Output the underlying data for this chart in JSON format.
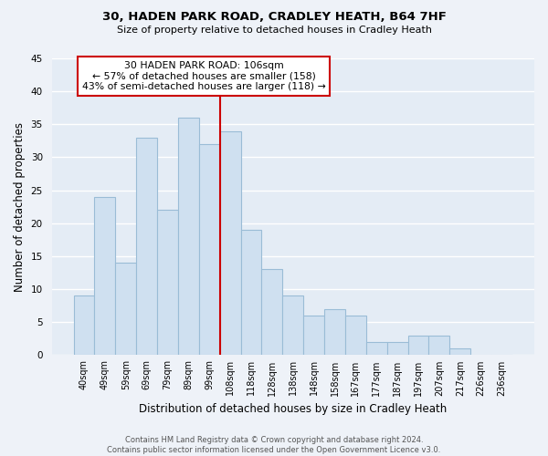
{
  "title": "30, HADEN PARK ROAD, CRADLEY HEATH, B64 7HF",
  "subtitle": "Size of property relative to detached houses in Cradley Heath",
  "bar_labels": [
    "40sqm",
    "49sqm",
    "59sqm",
    "69sqm",
    "79sqm",
    "89sqm",
    "99sqm",
    "108sqm",
    "118sqm",
    "128sqm",
    "138sqm",
    "148sqm",
    "158sqm",
    "167sqm",
    "177sqm",
    "187sqm",
    "197sqm",
    "207sqm",
    "217sqm",
    "226sqm",
    "236sqm"
  ],
  "bar_values": [
    9,
    24,
    14,
    33,
    22,
    36,
    32,
    34,
    19,
    13,
    9,
    6,
    7,
    6,
    2,
    2,
    3,
    3,
    1,
    0,
    0
  ],
  "bar_color": "#cfe0f0",
  "bar_edge_color": "#9abcd6",
  "vline_color": "#cc0000",
  "annotation_title": "30 HADEN PARK ROAD: 106sqm",
  "annotation_line1": "← 57% of detached houses are smaller (158)",
  "annotation_line2": "43% of semi-detached houses are larger (118) →",
  "annotation_box_color": "#ffffff",
  "annotation_box_edge": "#cc0000",
  "xlabel": "Distribution of detached houses by size in Cradley Heath",
  "ylabel": "Number of detached properties",
  "ylim": [
    0,
    45
  ],
  "yticks": [
    0,
    5,
    10,
    15,
    20,
    25,
    30,
    35,
    40,
    45
  ],
  "footer1": "Contains HM Land Registry data © Crown copyright and database right 2024.",
  "footer2": "Contains public sector information licensed under the Open Government Licence v3.0.",
  "bg_color": "#eef2f8",
  "plot_bg_color": "#e4ecf5",
  "grid_color": "#ffffff"
}
